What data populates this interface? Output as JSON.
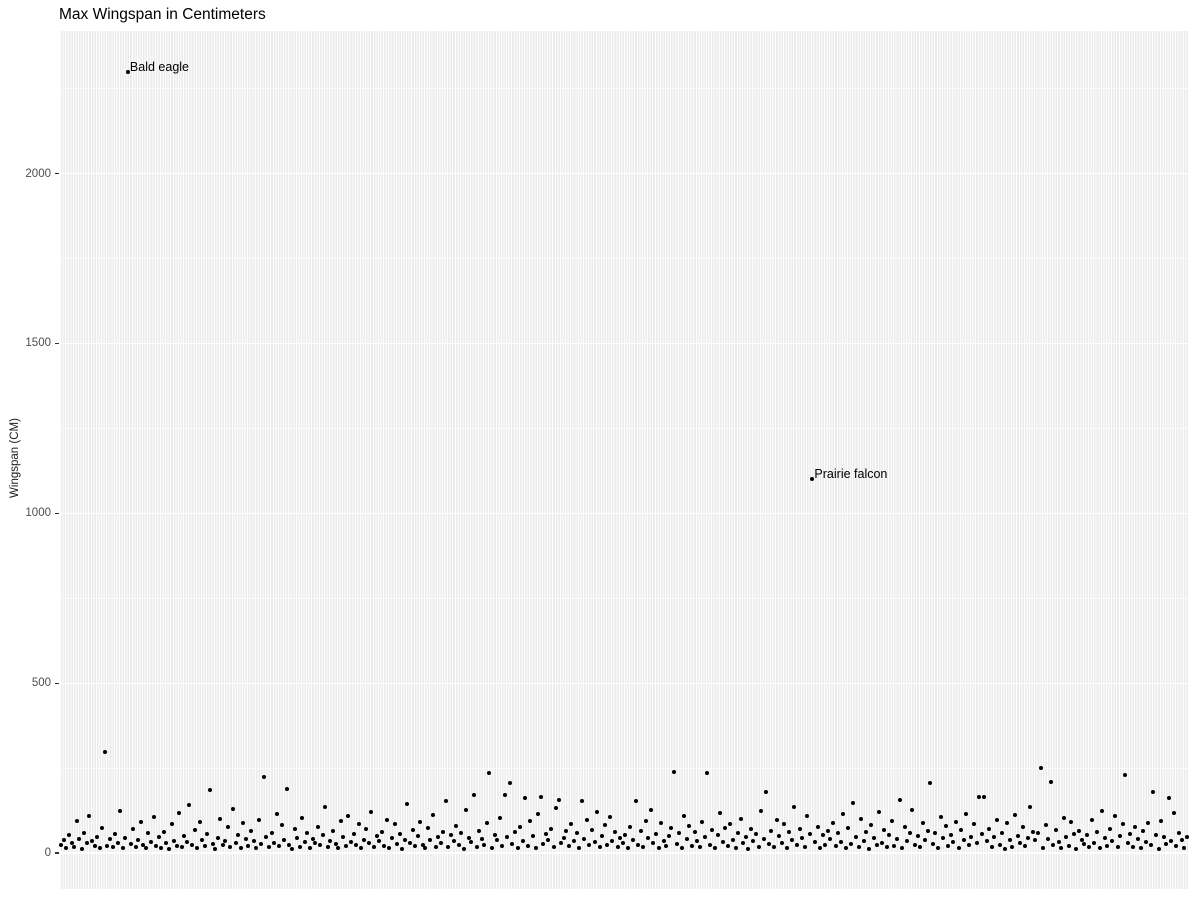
{
  "chart_data": {
    "type": "scatter",
    "title": "Max Wingspan in Centimeters",
    "xlabel": "",
    "ylabel": "Wingspan (CM)",
    "x_description": "bird species, one point per species (no x tick labels shown)",
    "n_points": 440,
    "ylim": [
      -106,
      2420
    ],
    "yticks": [
      0,
      500,
      1000,
      1500,
      2000
    ],
    "yticks_minor": [
      250,
      750,
      1250,
      1750,
      2250
    ],
    "grid": "ggplot-gray-panel-white-gridlines",
    "legend": "none",
    "point_color": "#000000",
    "panel_color": "#ebebeb",
    "gridline_color": "#ffffff",
    "annotations": [
      {
        "label": "Bald eagle",
        "x": 27,
        "y": 2300
      },
      {
        "label": "Prairie falcon",
        "x": 294,
        "y": 1100
      }
    ],
    "values": [
      25,
      38,
      15,
      52,
      30,
      18,
      95,
      42,
      12,
      60,
      28,
      110,
      35,
      20,
      48,
      15,
      75,
      297,
      22,
      40,
      18,
      55,
      30,
      125,
      16,
      44,
      2300,
      26,
      70,
      19,
      38,
      90,
      24,
      14,
      58,
      33,
      105,
      21,
      47,
      16,
      62,
      28,
      13,
      86,
      36,
      22,
      118,
      17,
      50,
      31,
      140,
      24,
      68,
      15,
      92,
      38,
      20,
      55,
      185,
      27,
      12,
      45,
      100,
      23,
      34,
      77,
      18,
      130,
      29,
      52,
      16,
      88,
      40,
      21,
      64,
      35,
      14,
      96,
      26,
      224,
      48,
      17,
      58,
      30,
      115,
      22,
      83,
      37,
      188,
      25,
      13,
      70,
      45,
      19,
      102,
      32,
      60,
      16,
      41,
      28,
      78,
      23,
      54,
      135,
      18,
      36,
      65,
      27,
      15,
      94,
      46,
      20,
      108,
      33,
      57,
      24,
      86,
      14,
      38,
      72,
      29,
      120,
      17,
      49,
      35,
      62,
      22,
      98,
      16,
      43,
      84,
      26,
      56,
      12,
      38,
      145,
      30,
      68,
      21,
      50,
      90,
      25,
      14,
      74,
      39,
      112,
      19,
      47,
      28,
      63,
      153,
      17,
      52,
      34,
      80,
      23,
      59,
      13,
      126,
      44,
      31,
      171,
      18,
      66,
      42,
      24,
      88,
      235,
      15,
      53,
      37,
      104,
      20,
      170,
      47,
      206,
      27,
      61,
      16,
      78,
      34,
      162,
      22,
      93,
      49,
      14,
      116,
      165,
      26,
      55,
      38,
      72,
      18,
      132,
      156,
      29,
      44,
      64,
      21,
      85,
      36,
      58,
      15,
      153,
      40,
      97,
      23,
      69,
      32,
      122,
      17,
      51,
      82,
      25,
      106,
      35,
      62,
      19,
      45,
      28,
      54,
      14,
      76,
      39,
      153,
      24,
      66,
      18,
      95,
      43,
      128,
      30,
      57,
      16,
      87,
      36,
      22,
      49,
      73,
      238,
      27,
      58,
      15,
      110,
      41,
      80,
      20,
      63,
      35,
      17,
      92,
      46,
      235,
      25,
      67,
      14,
      53,
      118,
      31,
      75,
      22,
      86,
      38,
      16,
      59,
      101,
      28,
      47,
      13,
      70,
      34,
      55,
      19,
      124,
      42,
      180,
      26,
      64,
      17,
      97,
      50,
      29,
      84,
      15,
      61,
      37,
      135,
      23,
      71,
      44,
      18,
      108,
      56,
      1100,
      32,
      78,
      14,
      52,
      24,
      66,
      40,
      89,
      21,
      58,
      33,
      114,
      16,
      74,
      27,
      147,
      48,
      19,
      99,
      36,
      62,
      13,
      82,
      45,
      25,
      120,
      30,
      68,
      17,
      54,
      94,
      22,
      41,
      156,
      15,
      77,
      35,
      60,
      128,
      24,
      49,
      18,
      87,
      38,
      64,
      206,
      26,
      58,
      14,
      105,
      43,
      79,
      20,
      52,
      31,
      92,
      16,
      67,
      37,
      116,
      23,
      48,
      85,
      28,
      165,
      55,
      165,
      34,
      72,
      19,
      46,
      98,
      25,
      60,
      13,
      88,
      39,
      17,
      112,
      51,
      29,
      76,
      21,
      44,
      134,
      63,
      37,
      58,
      250,
      16,
      81,
      42,
      209,
      24,
      69,
      33,
      15,
      102,
      47,
      20,
      90,
      56,
      12,
      65,
      38,
      27,
      53,
      18,
      96,
      30,
      61,
      14,
      124,
      45,
      22,
      70,
      36,
      108,
      17,
      50,
      85,
      229,
      28,
      57,
      19,
      78,
      41,
      15,
      66,
      32,
      88,
      23,
      179,
      54,
      13,
      93,
      46,
      26,
      162,
      35,
      118,
      20,
      59,
      38,
      16,
      48
    ]
  }
}
